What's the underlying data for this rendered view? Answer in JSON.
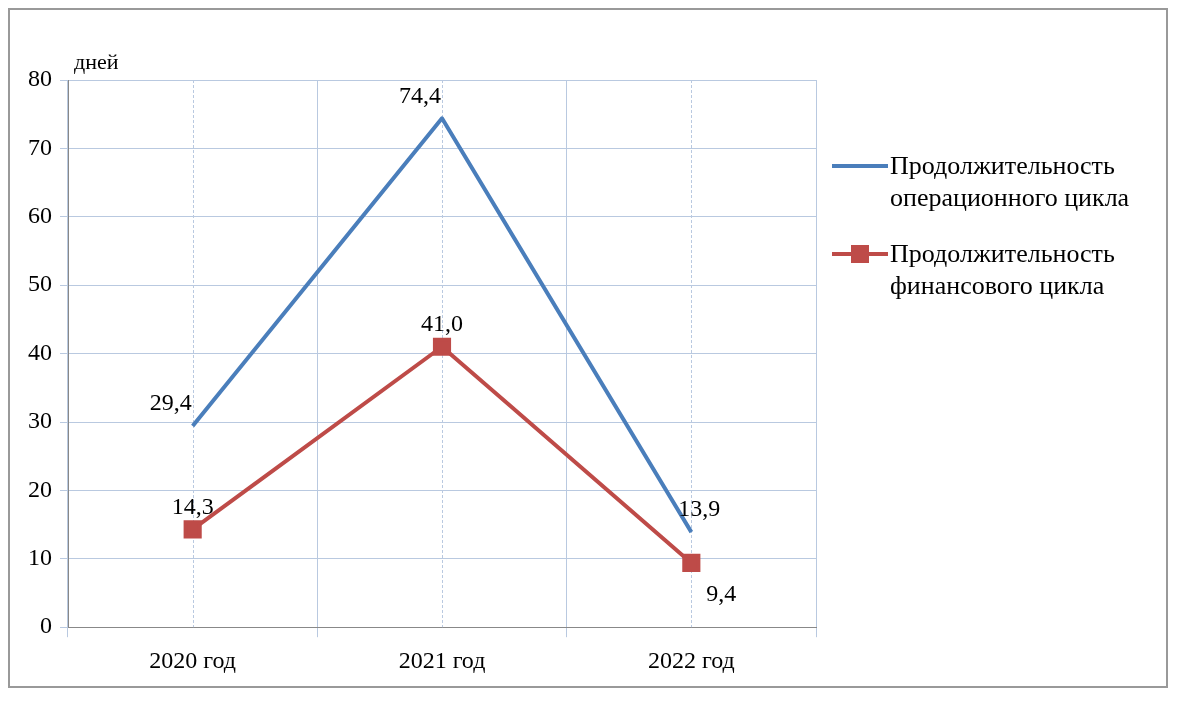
{
  "chart_data": {
    "type": "line",
    "ylabel": "дней",
    "categories": [
      "2020 год",
      "2021 год",
      "2022 год"
    ],
    "series": [
      {
        "name": "Продолжительность операционного цикла",
        "color": "#4a7ebb",
        "values": [
          29.4,
          74.4,
          13.9
        ],
        "value_labels": [
          "29,4",
          "74,4",
          "13,9"
        ],
        "marker": "none"
      },
      {
        "name": "Продолжительность финансового цикла",
        "color": "#be4b48",
        "values": [
          14.3,
          41.0,
          9.4
        ],
        "value_labels": [
          "14,3",
          "41,0",
          "9,4"
        ],
        "marker": "square"
      }
    ],
    "ylim": [
      0,
      80
    ],
    "yticks": [
      0,
      10,
      20,
      30,
      40,
      50,
      60,
      70,
      80
    ],
    "grid": true,
    "legend": "right"
  }
}
